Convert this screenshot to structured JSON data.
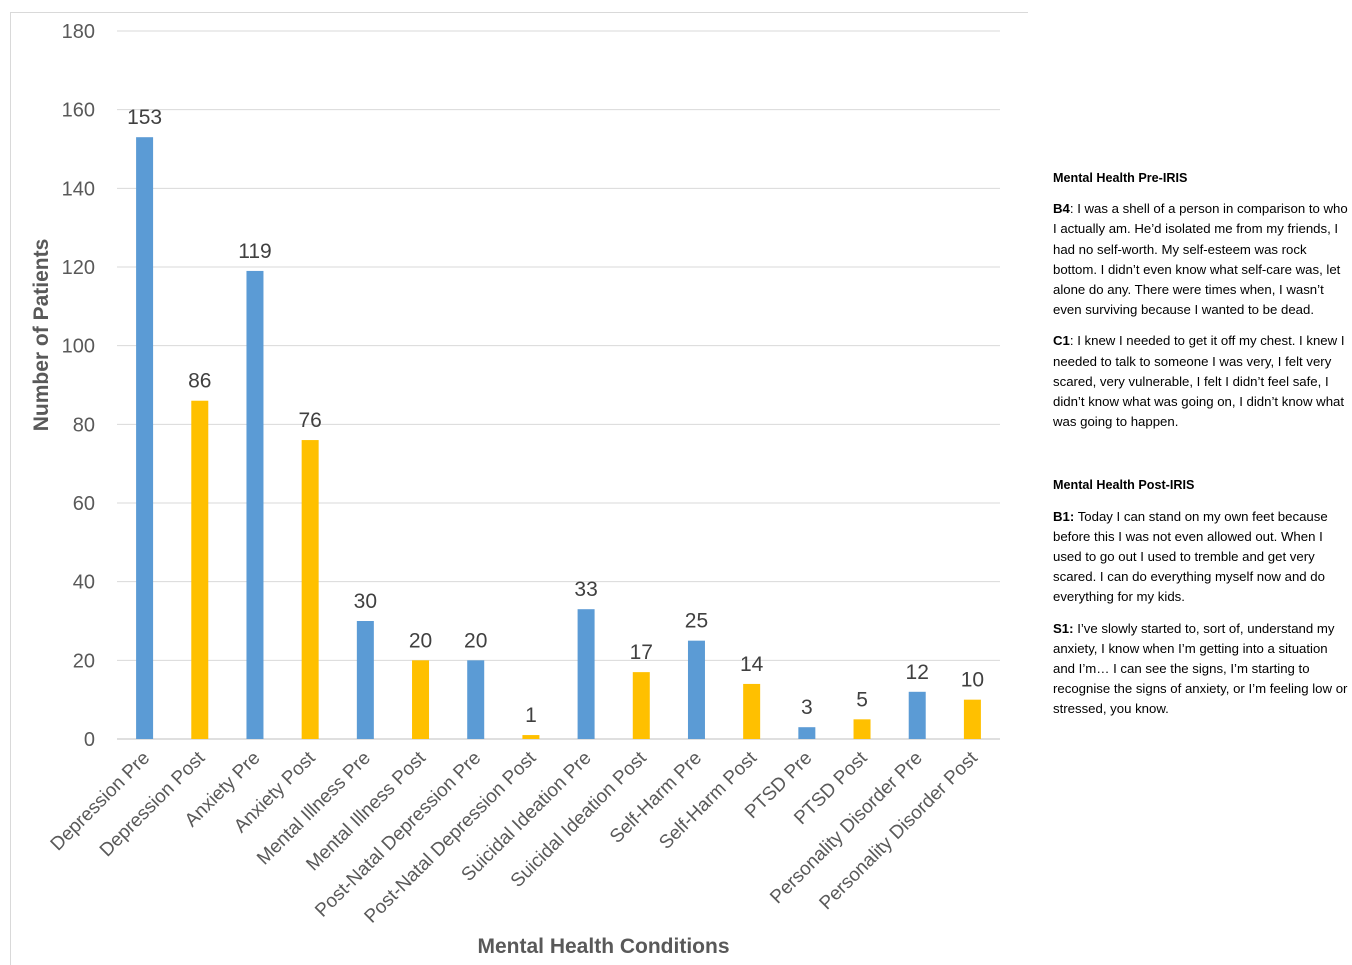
{
  "chart_data": {
    "type": "bar",
    "categories": [
      "Depression Pre",
      "Depression Post",
      "Anxiety Pre",
      "Anxiety Post",
      "Mental Illness Pre",
      "Mental Illness Post",
      "Post-Natal Depression Pre",
      "Post-Natal Depression Post",
      "Suicidal Ideation Pre",
      "Suicidal Ideation Post",
      "Self-Harm Pre",
      "Self-Harm Post",
      "PTSD Pre",
      "PTSD  Post",
      "Personality Disorder Pre",
      "Personality Disorder Post"
    ],
    "values": [
      153,
      86,
      119,
      76,
      30,
      20,
      20,
      1,
      33,
      17,
      25,
      14,
      3,
      5,
      12,
      10
    ],
    "bar_colors": [
      "#5b9bd5",
      "#ffc000"
    ],
    "xlabel": "Mental Health Conditions",
    "ylabel": "Number of Patients",
    "ylim": [
      0,
      180
    ],
    "yticks": [
      0,
      20,
      40,
      60,
      80,
      100,
      120,
      140,
      160,
      180
    ],
    "grid": true,
    "legend": "none"
  },
  "quotes": {
    "pre": {
      "heading": "Mental Health Pre-IRIS",
      "items": [
        {
          "id": "B4",
          "sep": ": ",
          "text": "I was a shell of a person in comparison to who I actually am. He’d isolated me from my friends, I had no self-worth. My self-esteem was rock bottom. I didn’t even know what self-care was, let alone do any. There were times when, I wasn’t even surviving because I wanted to be dead."
        },
        {
          "id": "C1",
          "sep": ": ",
          "text": "I knew I needed to get it off my chest. I knew I needed to talk to someone I was very, I felt very scared, very vulnerable, I felt I didn’t feel safe, I didn’t know what was going on, I didn’t know what was going to happen."
        }
      ]
    },
    "post": {
      "heading": "Mental Health Post-IRIS",
      "items": [
        {
          "id": "B1:",
          "sep": " ",
          "text": "Today I can stand on my own feet because before this I was not even allowed out. When I used to go out I used to tremble and get very scared. I can do everything myself now and do everything for my kids."
        },
        {
          "id": "S1:",
          "sep": " ",
          "text": "I’ve slowly started to, sort of, understand my anxiety, I know when I’m getting into a situation and I’m… I can see the signs, I’m starting to recognise the signs of anxiety, or I’m feeling low or stressed, you know."
        }
      ]
    }
  }
}
